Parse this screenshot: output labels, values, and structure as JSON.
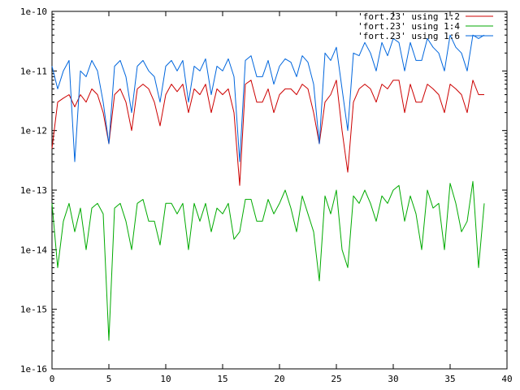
{
  "chart_data": {
    "type": "line",
    "title": "",
    "xlabel": "",
    "ylabel": "",
    "x_scale": "linear",
    "y_scale": "log",
    "xlim": [
      0,
      40
    ],
    "ylim": [
      1e-16,
      1e-10
    ],
    "x_ticks": [
      "0",
      "5",
      "10",
      "15",
      "20",
      "25",
      "30",
      "35",
      "40"
    ],
    "y_ticks": [
      "1e-16",
      "1e-15",
      "1e-14",
      "1e-13",
      "1e-12",
      "1e-11",
      "1e-10"
    ],
    "grid": false,
    "legend_position": "top-right",
    "series": [
      {
        "name": "'fort.23' using 1:2",
        "color": "#cc0000",
        "x": [
          0,
          0.5,
          1,
          1.5,
          2,
          2.5,
          3,
          3.5,
          4,
          4.5,
          5,
          5.5,
          6,
          6.5,
          7,
          7.5,
          8,
          8.5,
          9,
          9.5,
          10,
          10.5,
          11,
          11.5,
          12,
          12.5,
          13,
          13.5,
          14,
          14.5,
          15,
          15.5,
          16,
          16.5,
          17,
          17.5,
          18,
          18.5,
          19,
          19.5,
          20,
          20.5,
          21,
          21.5,
          22,
          22.5,
          23,
          23.5,
          24,
          24.5,
          25,
          25.5,
          26,
          26.5,
          27,
          27.5,
          28,
          28.5,
          29,
          29.5,
          30,
          30.5,
          31,
          31.5,
          32,
          32.5,
          33,
          33.5,
          34,
          34.5,
          35,
          35.5,
          36,
          36.5,
          37,
          37.5,
          38
        ],
        "y": [
          5e-13,
          3e-12,
          3.5e-12,
          4e-12,
          2.5e-12,
          4e-12,
          3e-12,
          5e-12,
          4e-12,
          2e-12,
          6e-13,
          4e-12,
          5e-12,
          3e-12,
          1e-12,
          5e-12,
          6e-12,
          5e-12,
          3e-12,
          1.2e-12,
          4e-12,
          6e-12,
          4.5e-12,
          6e-12,
          2e-12,
          5e-12,
          4e-12,
          6e-12,
          2e-12,
          5e-12,
          4e-12,
          5e-12,
          2e-12,
          1.2e-13,
          6e-12,
          7e-12,
          3e-12,
          3e-12,
          5e-12,
          2e-12,
          4e-12,
          5e-12,
          5e-12,
          4e-12,
          6e-12,
          5e-12,
          2e-12,
          6e-13,
          3e-12,
          4e-12,
          7e-12,
          1e-12,
          2e-13,
          3e-12,
          5e-12,
          6e-12,
          5e-12,
          3e-12,
          6e-12,
          5e-12,
          7e-12,
          7e-12,
          2e-12,
          6e-12,
          3e-12,
          3e-12,
          6e-12,
          5e-12,
          4e-12,
          2e-12,
          6e-12,
          5e-12,
          4e-12,
          2e-12,
          7e-12,
          4e-12,
          4e-12
        ]
      },
      {
        "name": "'fort.23' using 1:4",
        "color": "#00aa00",
        "x": [
          0,
          0.5,
          1,
          1.5,
          2,
          2.5,
          3,
          3.5,
          4,
          4.5,
          5,
          5.5,
          6,
          6.5,
          7,
          7.5,
          8,
          8.5,
          9,
          9.5,
          10,
          10.5,
          11,
          11.5,
          12,
          12.5,
          13,
          13.5,
          14,
          14.5,
          15,
          15.5,
          16,
          16.5,
          17,
          17.5,
          18,
          18.5,
          19,
          19.5,
          20,
          20.5,
          21,
          21.5,
          22,
          22.5,
          23,
          23.5,
          24,
          24.5,
          25,
          25.5,
          26,
          26.5,
          27,
          27.5,
          28,
          28.5,
          29,
          29.5,
          30,
          30.5,
          31,
          31.5,
          32,
          32.5,
          33,
          33.5,
          34,
          34.5,
          35,
          35.5,
          36,
          36.5,
          37,
          37.5,
          38
        ],
        "y": [
          6e-14,
          5e-15,
          3e-14,
          6e-14,
          2e-14,
          5e-14,
          1e-14,
          5e-14,
          6e-14,
          4e-14,
          3e-16,
          5e-14,
          6e-14,
          3e-14,
          1e-14,
          6e-14,
          7e-14,
          3e-14,
          3e-14,
          1.2e-14,
          6e-14,
          6e-14,
          4e-14,
          6e-14,
          1e-14,
          6e-14,
          3e-14,
          6e-14,
          2e-14,
          5e-14,
          4e-14,
          6e-14,
          1.5e-14,
          2e-14,
          7e-14,
          7e-14,
          3e-14,
          3e-14,
          7e-14,
          4e-14,
          6e-14,
          1e-13,
          5e-14,
          2e-14,
          8e-14,
          4e-14,
          2e-14,
          3e-15,
          8e-14,
          4e-14,
          1e-13,
          1e-14,
          5e-15,
          8e-14,
          6e-14,
          1e-13,
          6e-14,
          3e-14,
          8e-14,
          6e-14,
          1e-13,
          1.2e-13,
          3e-14,
          8e-14,
          4e-14,
          1e-14,
          1e-13,
          5e-14,
          6e-14,
          1e-14,
          1.3e-13,
          6e-14,
          2e-14,
          3e-14,
          1.4e-13,
          5e-15,
          6e-14
        ]
      },
      {
        "name": "'fort.23' using 1:6",
        "color": "#0066dd",
        "x": [
          0,
          0.5,
          1,
          1.5,
          2,
          2.5,
          3,
          3.5,
          4,
          4.5,
          5,
          5.5,
          6,
          6.5,
          7,
          7.5,
          8,
          8.5,
          9,
          9.5,
          10,
          10.5,
          11,
          11.5,
          12,
          12.5,
          13,
          13.5,
          14,
          14.5,
          15,
          15.5,
          16,
          16.5,
          17,
          17.5,
          18,
          18.5,
          19,
          19.5,
          20,
          20.5,
          21,
          21.5,
          22,
          22.5,
          23,
          23.5,
          24,
          24.5,
          25,
          25.5,
          26,
          26.5,
          27,
          27.5,
          28,
          28.5,
          29,
          29.5,
          30,
          30.5,
          31,
          31.5,
          32,
          32.5,
          33,
          33.5,
          34,
          34.5,
          35,
          35.5,
          36,
          36.5,
          37,
          37.5,
          38
        ],
        "y": [
          1.2e-11,
          5e-12,
          1e-11,
          1.5e-11,
          3e-13,
          1e-11,
          8e-12,
          1.5e-11,
          1e-11,
          3e-12,
          6e-13,
          1.2e-11,
          1.5e-11,
          8e-12,
          2e-12,
          1.2e-11,
          1.5e-11,
          1e-11,
          8e-12,
          3e-12,
          1.2e-11,
          1.5e-11,
          1e-11,
          1.5e-11,
          3e-12,
          1.2e-11,
          1e-11,
          1.6e-11,
          4e-12,
          1.2e-11,
          1e-11,
          1.6e-11,
          8e-12,
          3e-13,
          1.5e-11,
          1.8e-11,
          8e-12,
          8e-12,
          1.5e-11,
          6e-12,
          1.2e-11,
          1.6e-11,
          1.4e-11,
          8e-12,
          1.8e-11,
          1.4e-11,
          6e-12,
          6e-13,
          2e-11,
          1.5e-11,
          2.5e-11,
          5e-12,
          1e-12,
          2e-11,
          1.8e-11,
          3e-11,
          2e-11,
          1e-11,
          3e-11,
          1.8e-11,
          3.5e-11,
          3e-11,
          1e-11,
          3e-11,
          1.5e-11,
          1.5e-11,
          3.5e-11,
          2.5e-11,
          2e-11,
          1e-11,
          4e-11,
          2.5e-11,
          2e-11,
          1e-11,
          4e-11,
          3.5e-11,
          4e-11
        ]
      }
    ]
  }
}
